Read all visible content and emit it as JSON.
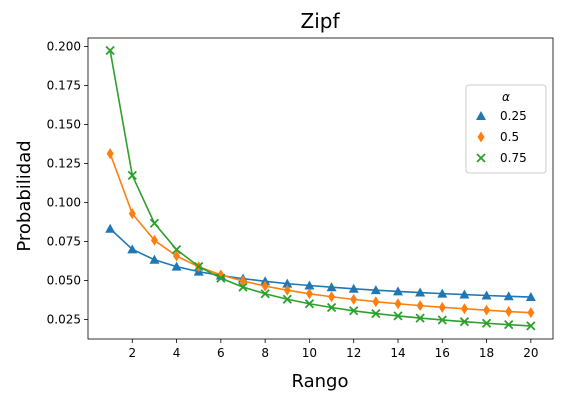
{
  "chart_data": {
    "type": "line",
    "title": "Zipf",
    "xlabel": "Rango",
    "ylabel": "Probabilidad",
    "xlim": [
      0,
      21
    ],
    "ylim": [
      0.0125,
      0.2055
    ],
    "xticks": [
      2,
      4,
      6,
      8,
      10,
      12,
      14,
      16,
      18,
      20
    ],
    "yticks": [
      0.025,
      0.05,
      0.075,
      0.1,
      0.125,
      0.15,
      0.175,
      0.2
    ],
    "xtick_labels": [
      "2",
      "4",
      "6",
      "8",
      "10",
      "12",
      "14",
      "16",
      "18",
      "20"
    ],
    "ytick_labels": [
      "0.025",
      "0.050",
      "0.075",
      "0.100",
      "0.125",
      "0.150",
      "0.175",
      "0.200"
    ],
    "grid": false,
    "legend": {
      "title": "α",
      "placement": "upper-right"
    },
    "x": [
      1,
      2,
      3,
      4,
      5,
      6,
      7,
      8,
      9,
      10,
      11,
      12,
      13,
      14,
      15,
      16,
      17,
      18,
      19,
      20
    ],
    "series": [
      {
        "name": "0.25",
        "color": "#1f77b4",
        "marker": "triangle",
        "values": [
          0.0832,
          0.07,
          0.0633,
          0.0589,
          0.0557,
          0.0532,
          0.0512,
          0.0495,
          0.048,
          0.0468,
          0.0457,
          0.0447,
          0.0438,
          0.043,
          0.0423,
          0.0416,
          0.041,
          0.0404,
          0.0399,
          0.0394
        ]
      },
      {
        "name": "0.5",
        "color": "#ff7f0e",
        "marker": "diamond",
        "values": [
          0.1314,
          0.0929,
          0.0758,
          0.0657,
          0.0588,
          0.0536,
          0.0497,
          0.0464,
          0.0438,
          0.0415,
          0.0396,
          0.0379,
          0.0364,
          0.0351,
          0.0339,
          0.0328,
          0.0319,
          0.031,
          0.0301,
          0.0294
        ]
      },
      {
        "name": "0.75",
        "color": "#2ca02c",
        "marker": "x",
        "values": [
          0.1975,
          0.1174,
          0.0867,
          0.0698,
          0.059,
          0.0515,
          0.0458,
          0.0415,
          0.038,
          0.0351,
          0.0327,
          0.0306,
          0.0288,
          0.0273,
          0.0259,
          0.0247,
          0.0236,
          0.0226,
          0.0217,
          0.0209
        ]
      }
    ]
  }
}
